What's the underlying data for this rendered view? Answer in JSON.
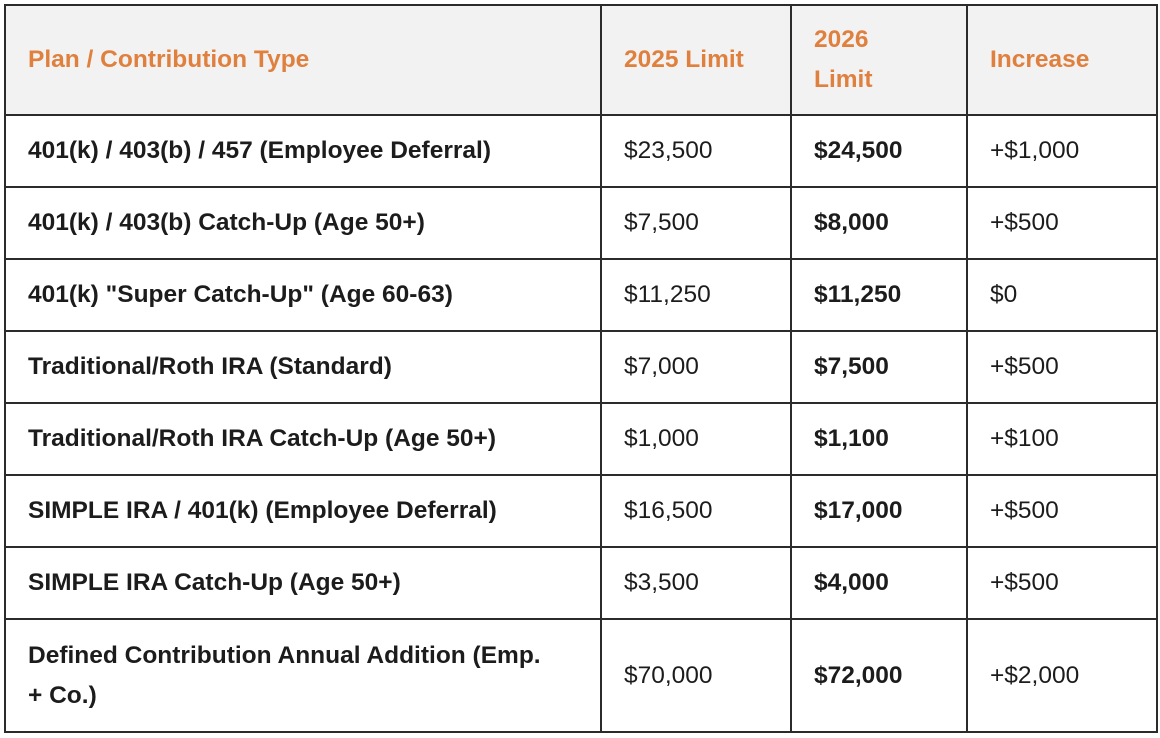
{
  "table": {
    "headers": {
      "type": "Plan / Contribution Type",
      "limit_2025": "2025 Limit",
      "limit_2026": "2026 Limit",
      "increase": "Increase"
    },
    "rows": [
      {
        "type": "401(k) / 403(b) / 457 (Employee Deferral)",
        "limit_2025": "$23,500",
        "limit_2026": "$24,500",
        "increase": "+$1,000"
      },
      {
        "type": "401(k) / 403(b) Catch-Up (Age 50+)",
        "limit_2025": "$7,500",
        "limit_2026": "$8,000",
        "increase": "+$500"
      },
      {
        "type": "401(k) \"Super Catch-Up\" (Age 60-63)",
        "limit_2025": "$11,250",
        "limit_2026": "$11,250",
        "increase": "$0"
      },
      {
        "type": "Traditional/Roth IRA (Standard)",
        "limit_2025": "$7,000",
        "limit_2026": "$7,500",
        "increase": "+$500"
      },
      {
        "type": "Traditional/Roth IRA Catch-Up (Age 50+)",
        "limit_2025": "$1,000",
        "limit_2026": "$1,100",
        "increase": "+$100"
      },
      {
        "type": "SIMPLE IRA / 401(k) (Employee Deferral)",
        "limit_2025": "$16,500",
        "limit_2026": "$17,000",
        "increase": "+$500"
      },
      {
        "type": "SIMPLE IRA Catch-Up (Age 50+)",
        "limit_2025": "$3,500",
        "limit_2026": "$4,000",
        "increase": "+$500"
      },
      {
        "type": "Defined Contribution Annual Addition (Emp. + Co.)",
        "limit_2025": "$70,000",
        "limit_2026": "$72,000",
        "increase": "+$2,000"
      }
    ]
  },
  "colors": {
    "header_text": "#e0803e",
    "header_background": "#f2f2f2",
    "border": "#2b2b2b",
    "body_text": "#1c1c1c"
  }
}
